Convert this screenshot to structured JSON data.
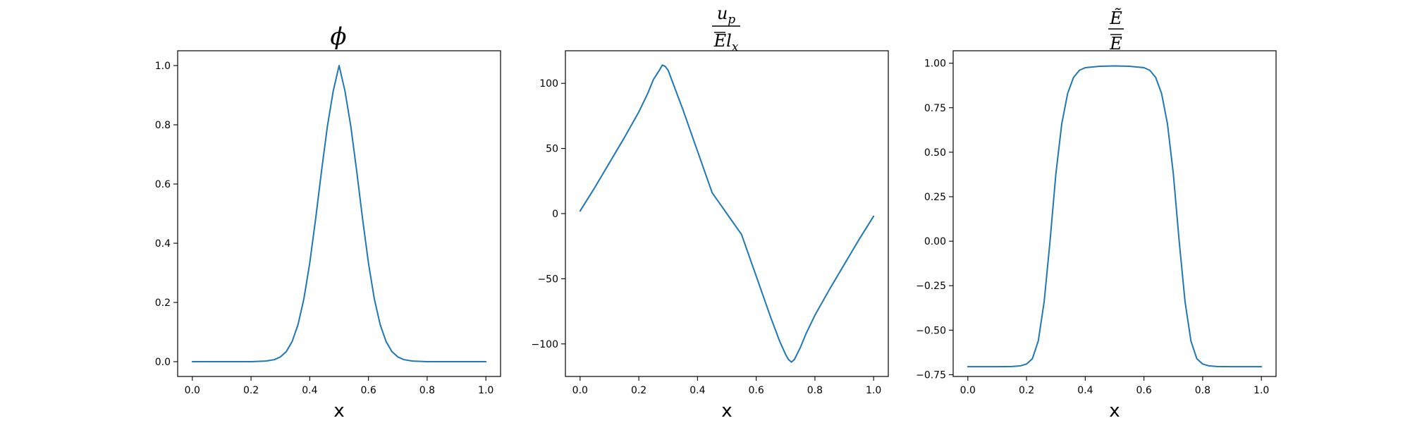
{
  "chart_data": [
    {
      "type": "line",
      "title": "ϕ",
      "xlabel": "x",
      "ylabel": "",
      "xlim": [
        -0.05,
        1.05
      ],
      "ylim": [
        -0.05,
        1.05
      ],
      "xticks": [
        "0.0",
        "0.2",
        "0.4",
        "0.6",
        "0.8",
        "1.0"
      ],
      "yticks": [
        "0.0",
        "0.2",
        "0.4",
        "0.6",
        "0.8",
        "1.0"
      ],
      "line_color": "#1f77b4",
      "series": [
        {
          "x": [
            0.0,
            0.05,
            0.1,
            0.15,
            0.2,
            0.25,
            0.28,
            0.3,
            0.32,
            0.34,
            0.36,
            0.38,
            0.4,
            0.42,
            0.44,
            0.46,
            0.48,
            0.5,
            0.52,
            0.54,
            0.56,
            0.58,
            0.6,
            0.62,
            0.64,
            0.66,
            0.68,
            0.7,
            0.72,
            0.75,
            0.8,
            0.85,
            0.9,
            0.95,
            1.0
          ],
          "y": [
            0.0,
            0.0,
            0.0,
            0.0,
            0.0,
            0.002,
            0.007,
            0.016,
            0.034,
            0.068,
            0.125,
            0.212,
            0.333,
            0.482,
            0.643,
            0.794,
            0.914,
            1.0,
            0.914,
            0.794,
            0.643,
            0.482,
            0.333,
            0.212,
            0.125,
            0.068,
            0.034,
            0.016,
            0.007,
            0.002,
            0.0,
            0.0,
            0.0,
            0.0,
            0.0
          ]
        }
      ]
    },
    {
      "type": "line",
      "title": "",
      "title_numerator": "u",
      "title_numerator_sub": "p",
      "title_denominator": "E",
      "title_denominator_mid": "l",
      "title_denominator_sub": "x",
      "xlabel": "x",
      "ylabel": "",
      "xlim": [
        -0.05,
        1.05
      ],
      "ylim": [
        -125,
        125
      ],
      "xticks": [
        "0.0",
        "0.2",
        "0.4",
        "0.6",
        "0.8",
        "1.0"
      ],
      "yticks": [
        "−100",
        "−50",
        "0",
        "50",
        "100"
      ],
      "line_color": "#1f77b4",
      "series": [
        {
          "x": [
            0.0,
            0.05,
            0.1,
            0.15,
            0.2,
            0.23,
            0.25,
            0.27,
            0.28,
            0.29,
            0.3,
            0.32,
            0.35,
            0.4,
            0.45,
            0.5,
            0.55,
            0.6,
            0.65,
            0.68,
            0.7,
            0.71,
            0.72,
            0.73,
            0.75,
            0.77,
            0.8,
            0.85,
            0.9,
            0.95,
            1.0
          ],
          "y": [
            2,
            20,
            39,
            58,
            78,
            92,
            103,
            110,
            114,
            113,
            110,
            98,
            80,
            48,
            16,
            0,
            -16,
            -48,
            -80,
            -98,
            -108,
            -112,
            -114,
            -112,
            -103,
            -92,
            -78,
            -58,
            -39,
            -20,
            -2
          ]
        }
      ]
    },
    {
      "type": "line",
      "title": "",
      "title_numerator": "Ẽ",
      "title_denominator": "E",
      "xlabel": "x",
      "ylabel": "",
      "xlim": [
        -0.05,
        1.05
      ],
      "ylim": [
        -0.76,
        1.07
      ],
      "xticks": [
        "0.0",
        "0.2",
        "0.4",
        "0.6",
        "0.8",
        "1.0"
      ],
      "yticks": [
        "−0.75",
        "−0.50",
        "−0.25",
        "0.00",
        "0.25",
        "0.50",
        "0.75",
        "1.00"
      ],
      "line_color": "#1f77b4",
      "series": [
        {
          "x": [
            0.0,
            0.05,
            0.1,
            0.15,
            0.18,
            0.2,
            0.22,
            0.24,
            0.26,
            0.28,
            0.3,
            0.32,
            0.34,
            0.36,
            0.38,
            0.4,
            0.45,
            0.5,
            0.55,
            0.6,
            0.62,
            0.64,
            0.66,
            0.68,
            0.7,
            0.72,
            0.74,
            0.76,
            0.78,
            0.8,
            0.82,
            0.85,
            0.9,
            0.95,
            1.0
          ],
          "y": [
            -0.705,
            -0.705,
            -0.705,
            -0.704,
            -0.7,
            -0.69,
            -0.66,
            -0.56,
            -0.34,
            0.0,
            0.38,
            0.66,
            0.83,
            0.92,
            0.96,
            0.975,
            0.983,
            0.985,
            0.983,
            0.975,
            0.96,
            0.92,
            0.83,
            0.66,
            0.38,
            0.0,
            -0.34,
            -0.56,
            -0.66,
            -0.69,
            -0.7,
            -0.704,
            -0.705,
            -0.705,
            -0.705
          ]
        }
      ]
    }
  ]
}
